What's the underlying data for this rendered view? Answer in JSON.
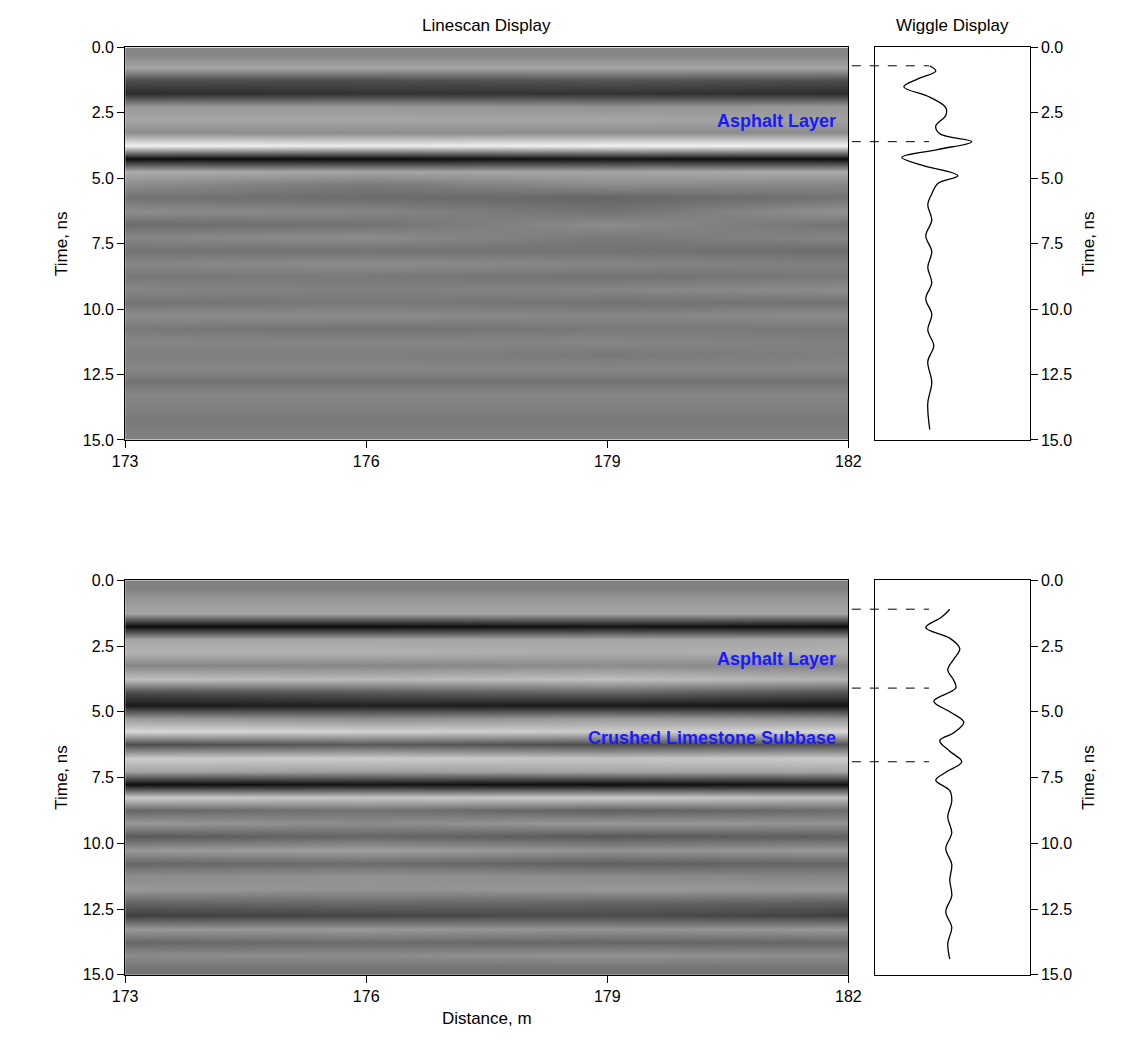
{
  "chart_data": [
    {
      "type": "heatmap",
      "title": "Linescan Display",
      "y_label": "Time, ns",
      "x": [
        173,
        176,
        179,
        182
      ],
      "y": [
        0.25,
        0.75,
        1.25,
        1.75,
        2.25,
        2.75,
        3.25,
        3.75,
        4.25,
        4.75,
        5.25,
        5.75,
        6.25,
        6.75,
        7.25,
        7.75,
        8.25,
        8.75,
        9.25,
        9.75,
        10.25,
        10.75,
        11.25,
        11.75,
        12.25,
        12.75,
        13.25,
        13.75,
        14.25,
        14.75
      ],
      "z": [
        [
          0.05,
          0.05,
          0.05,
          0.05
        ],
        [
          0.3,
          0.3,
          0.3,
          0.3
        ],
        [
          -0.4,
          -0.4,
          -0.35,
          -0.4
        ],
        [
          -0.65,
          -0.6,
          -0.6,
          -0.65
        ],
        [
          0.2,
          0.2,
          0.15,
          0.2
        ],
        [
          0.3,
          0.3,
          0.3,
          0.25
        ],
        [
          0.1,
          0.1,
          0.1,
          0.1
        ],
        [
          0.9,
          0.85,
          0.9,
          0.9
        ],
        [
          -0.9,
          -0.9,
          -0.85,
          -0.9
        ],
        [
          0.35,
          0.3,
          0.3,
          0.35
        ],
        [
          0.1,
          -0.05,
          0.1,
          0.05
        ],
        [
          -0.1,
          -0.15,
          -0.2,
          -0.1
        ],
        [
          0.1,
          0.05,
          -0.1,
          0.15
        ],
        [
          -0.15,
          -0.1,
          0.1,
          -0.1
        ],
        [
          0.05,
          0.1,
          -0.05,
          0.05
        ],
        [
          -0.1,
          -0.1,
          -0.1,
          -0.15
        ],
        [
          0.05,
          0.1,
          0.05,
          0.0
        ],
        [
          -0.05,
          -0.05,
          -0.1,
          -0.05
        ],
        [
          0.05,
          0.0,
          0.05,
          0.1
        ],
        [
          -0.1,
          -0.05,
          -0.1,
          -0.1
        ],
        [
          0.1,
          0.1,
          0.05,
          0.1
        ],
        [
          -0.05,
          -0.1,
          -0.05,
          -0.05
        ],
        [
          0.05,
          0.05,
          0.05,
          0.0
        ],
        [
          0.0,
          0.0,
          -0.05,
          0.0
        ],
        [
          0.05,
          0.05,
          0.05,
          0.05
        ],
        [
          -0.1,
          -0.1,
          -0.1,
          -0.1
        ],
        [
          0.05,
          0.05,
          0.05,
          0.05
        ],
        [
          0.0,
          0.0,
          0.0,
          0.0
        ],
        [
          -0.05,
          -0.05,
          -0.05,
          -0.05
        ],
        [
          0.0,
          0.0,
          0.0,
          0.0
        ]
      ],
      "zlim": [
        -1,
        1
      ],
      "xlim": [
        173,
        182
      ],
      "xticks": [
        173,
        176,
        179,
        182
      ],
      "ylim": [
        0,
        15
      ],
      "yticks": [
        {
          "value": 0,
          "label": "0.0"
        },
        2.5,
        {
          "value": 5,
          "label": "5.0"
        },
        7.5,
        {
          "value": 10,
          "label": "10.0"
        },
        12.5,
        {
          "value": 15,
          "label": "15.0"
        }
      ],
      "annotations": [
        {
          "text": "Asphalt Layer",
          "y": 2.8
        }
      ]
    },
    {
      "type": "line",
      "title": "Wiggle Display",
      "y_label": "Time, ns",
      "color": "#000000",
      "x": [
        0,
        0.15,
        -0.3,
        -0.65,
        0.0,
        0.4,
        0.4,
        0.15,
        0.25,
        1.05,
        0.2,
        -0.7,
        -0.2,
        0.7,
        0.2,
        0.05,
        -0.05,
        0.05,
        -0.1,
        0.05,
        -0.05,
        0.05,
        -0.1,
        0.05,
        -0.05,
        0.1,
        -0.05,
        0.05,
        -0.05,
        0.0
      ],
      "y": [
        0.7,
        0.9,
        1.2,
        1.5,
        1.9,
        2.3,
        2.6,
        3.0,
        3.3,
        3.6,
        3.9,
        4.2,
        4.5,
        4.9,
        5.2,
        5.6,
        6.0,
        6.6,
        7.2,
        7.8,
        8.4,
        9.0,
        9.6,
        10.2,
        10.8,
        11.4,
        12.0,
        12.8,
        13.6,
        14.6
      ],
      "xlim": [
        -1.375,
        2.5
      ],
      "ylim": [
        0,
        15
      ],
      "yticks": [
        {
          "value": 0,
          "label": "0.0"
        },
        2.5,
        {
          "value": 5,
          "label": "5.0"
        },
        7.5,
        {
          "value": 10,
          "label": "10.0"
        },
        12.5,
        {
          "value": 15,
          "label": "15.0"
        }
      ],
      "tick_labels": "y",
      "reference_lines": [
        0.7,
        3.6
      ]
    },
    {
      "type": "heatmap",
      "x_label": "Distance, m",
      "y_label": "Time, ns",
      "x": [
        173,
        176,
        179,
        182
      ],
      "y": [
        0.25,
        0.75,
        1.25,
        1.75,
        2.25,
        2.75,
        3.25,
        3.75,
        4.25,
        4.75,
        5.25,
        5.75,
        6.25,
        6.75,
        7.25,
        7.75,
        8.25,
        8.75,
        9.25,
        9.75,
        10.25,
        10.75,
        11.25,
        11.75,
        12.25,
        12.75,
        13.25,
        13.75,
        14.25,
        14.75
      ],
      "z": [
        [
          0.0,
          0.0,
          0.0,
          0.0
        ],
        [
          0.2,
          0.2,
          0.2,
          0.2
        ],
        [
          0.3,
          0.3,
          0.3,
          0.3
        ],
        [
          -0.9,
          -0.9,
          -0.85,
          -0.9
        ],
        [
          0.3,
          0.3,
          0.3,
          0.3
        ],
        [
          0.4,
          0.4,
          0.35,
          0.4
        ],
        [
          0.05,
          0.05,
          0.1,
          0.05
        ],
        [
          0.5,
          0.45,
          0.5,
          0.4
        ],
        [
          -0.4,
          -0.3,
          -0.2,
          -0.35
        ],
        [
          -0.8,
          -0.75,
          -0.8,
          -0.85
        ],
        [
          0.2,
          0.1,
          0.2,
          0.15
        ],
        [
          0.7,
          0.65,
          0.6,
          0.7
        ],
        [
          -0.4,
          -0.3,
          -0.4,
          -0.35
        ],
        [
          0.6,
          0.6,
          0.55,
          0.6
        ],
        [
          0.3,
          0.25,
          0.3,
          0.3
        ],
        [
          -0.9,
          -0.85,
          -0.9,
          -0.85
        ],
        [
          0.6,
          0.55,
          0.6,
          0.5
        ],
        [
          -0.2,
          -0.1,
          -0.25,
          -0.15
        ],
        [
          0.2,
          0.1,
          0.2,
          0.15
        ],
        [
          -0.3,
          -0.2,
          -0.3,
          -0.25
        ],
        [
          0.2,
          0.25,
          0.15,
          0.2
        ],
        [
          -0.2,
          -0.15,
          -0.25,
          -0.2
        ],
        [
          0.1,
          0.15,
          0.1,
          0.05
        ],
        [
          0.2,
          0.15,
          0.2,
          0.2
        ],
        [
          -0.2,
          -0.15,
          -0.2,
          -0.25
        ],
        [
          -0.5,
          -0.45,
          -0.4,
          -0.5
        ],
        [
          0.2,
          0.2,
          0.15,
          0.2
        ],
        [
          -0.2,
          -0.15,
          -0.2,
          -0.2
        ],
        [
          0.1,
          0.1,
          0.15,
          0.1
        ],
        [
          -0.1,
          -0.1,
          -0.1,
          -0.1
        ]
      ],
      "zlim": [
        -1,
        1
      ],
      "xlim": [
        173,
        182
      ],
      "xticks": [
        173,
        176,
        179,
        182
      ],
      "ylim": [
        0,
        15
      ],
      "yticks": [
        {
          "value": 0,
          "label": "0.0"
        },
        2.5,
        {
          "value": 5,
          "label": "5.0"
        },
        7.5,
        {
          "value": 10,
          "label": "10.0"
        },
        12.5,
        {
          "value": 15,
          "label": "15.0"
        }
      ],
      "annotations": [
        {
          "text": "Asphalt Layer",
          "y": 3.0
        },
        {
          "text": "Crushed Limestone Subbase",
          "y": 6.0
        }
      ]
    },
    {
      "type": "line",
      "y_label": "Time, ns",
      "color": "#000000",
      "x": [
        0,
        -0.2,
        -0.6,
        0.0,
        0.25,
        0.1,
        -0.05,
        0.1,
        0.15,
        -0.4,
        0.0,
        0.35,
        0.1,
        -0.25,
        0.0,
        0.3,
        -0.1,
        -0.35,
        0.0,
        0.05,
        -0.05,
        0.05,
        -0.1,
        0.05,
        0.0,
        0.05,
        -0.1,
        0.05,
        -0.05,
        0.0
      ],
      "y": [
        1.1,
        1.4,
        1.8,
        2.2,
        2.6,
        3.0,
        3.4,
        3.8,
        4.1,
        4.6,
        5.0,
        5.4,
        5.8,
        6.1,
        6.5,
        6.9,
        7.3,
        7.6,
        8.0,
        8.4,
        9.0,
        9.6,
        10.2,
        10.8,
        11.4,
        12.0,
        12.6,
        13.2,
        13.8,
        14.4
      ],
      "xlim": [
        -1.875,
        2.0
      ],
      "ylim": [
        0,
        15
      ],
      "yticks": [
        {
          "value": 0,
          "label": "0.0"
        },
        2.5,
        {
          "value": 5,
          "label": "5.0"
        },
        7.5,
        {
          "value": 10,
          "label": "10.0"
        },
        12.5,
        {
          "value": 15,
          "label": "15.0"
        }
      ],
      "tick_labels": "y",
      "reference_lines": [
        1.1,
        4.1,
        6.9
      ]
    }
  ]
}
